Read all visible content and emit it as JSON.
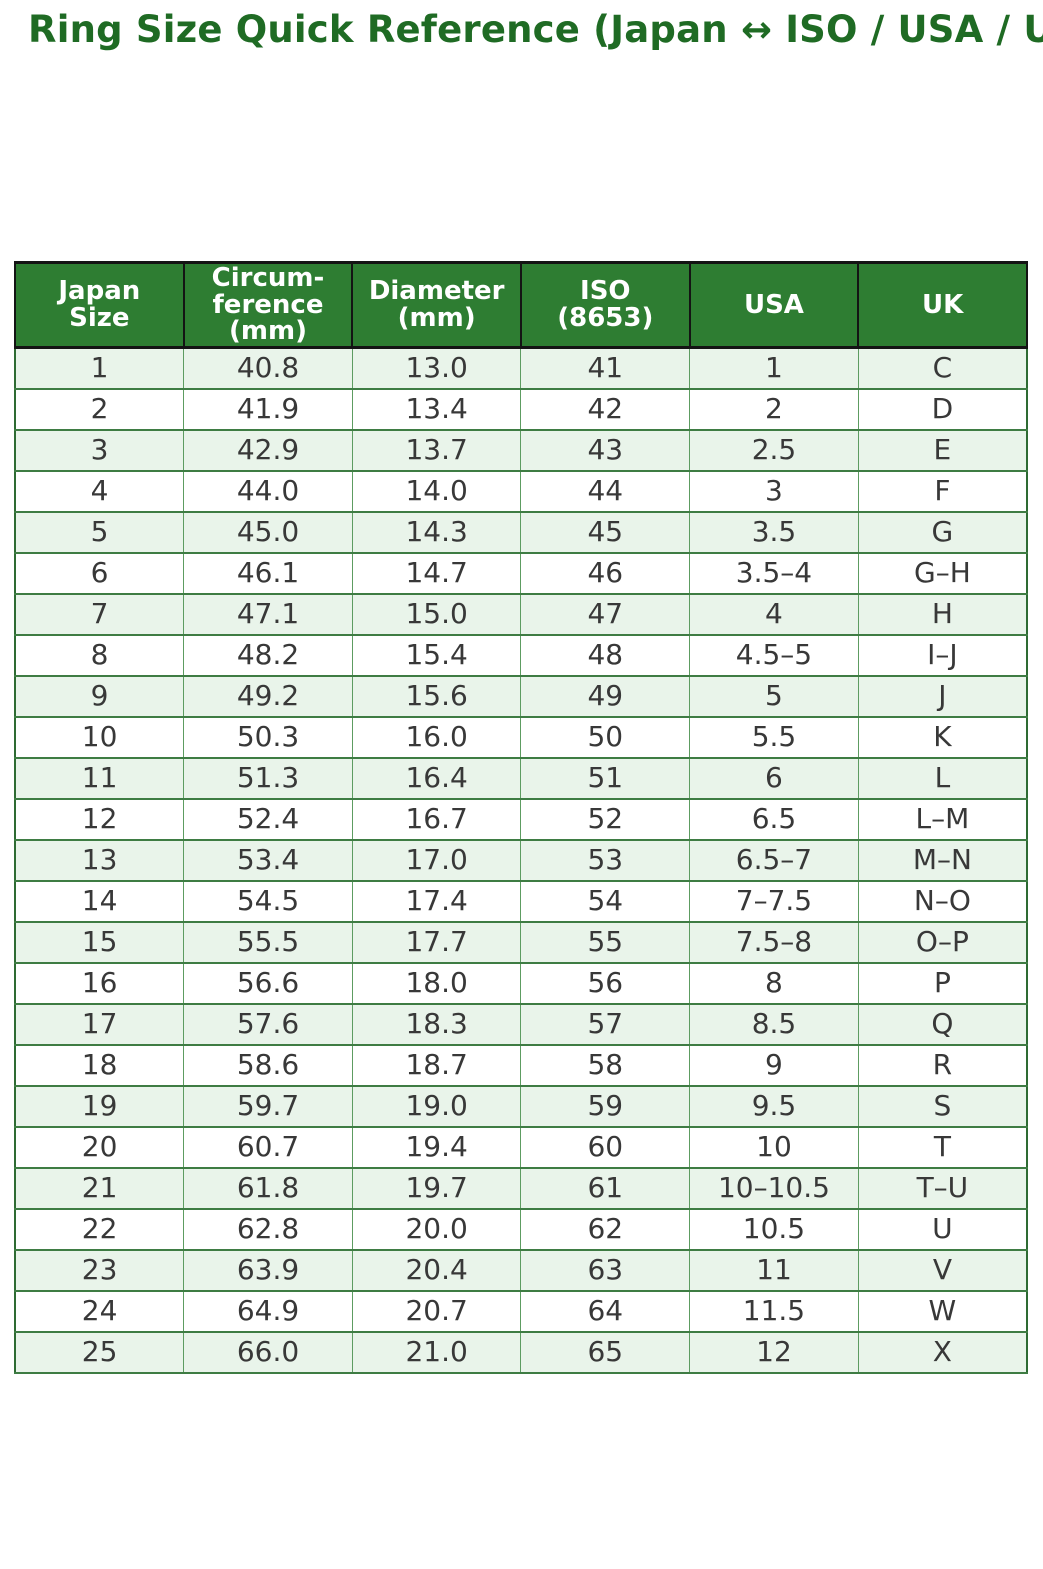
{
  "title": "Ring Size Quick Reference (Japan ↔ ISO / USA / UK)",
  "colors": {
    "title_text": "#1f6b24",
    "header_bg": "#2e7d32",
    "header_text": "#ffffff",
    "row_alt_bg": "#e9f4ea",
    "row_bg": "#ffffff",
    "row_border": "#3e7c43",
    "cell_border": "#5d9c61",
    "header_border": "#141414",
    "cell_text": "#383838"
  },
  "table": {
    "header_display": [
      "Japan\nSize",
      "Circum-\nference\n(mm)",
      "Diameter\n(mm)",
      "ISO\n(8653)",
      "USA",
      "UK"
    ]
  },
  "chart_data": {
    "type": "table",
    "title": "Ring Size Quick Reference (Japan ↔ ISO / USA / UK)",
    "columns": [
      "Japan Size",
      "Circumference (mm)",
      "Diameter (mm)",
      "ISO (8653)",
      "USA",
      "UK"
    ],
    "rows": [
      [
        "1",
        "40.8",
        "13.0",
        "41",
        "1",
        "C"
      ],
      [
        "2",
        "41.9",
        "13.4",
        "42",
        "2",
        "D"
      ],
      [
        "3",
        "42.9",
        "13.7",
        "43",
        "2.5",
        "E"
      ],
      [
        "4",
        "44.0",
        "14.0",
        "44",
        "3",
        "F"
      ],
      [
        "5",
        "45.0",
        "14.3",
        "45",
        "3.5",
        "G"
      ],
      [
        "6",
        "46.1",
        "14.7",
        "46",
        "3.5–4",
        "G–H"
      ],
      [
        "7",
        "47.1",
        "15.0",
        "47",
        "4",
        "H"
      ],
      [
        "8",
        "48.2",
        "15.4",
        "48",
        "4.5–5",
        "I–J"
      ],
      [
        "9",
        "49.2",
        "15.6",
        "49",
        "5",
        "J"
      ],
      [
        "10",
        "50.3",
        "16.0",
        "50",
        "5.5",
        "K"
      ],
      [
        "11",
        "51.3",
        "16.4",
        "51",
        "6",
        "L"
      ],
      [
        "12",
        "52.4",
        "16.7",
        "52",
        "6.5",
        "L–M"
      ],
      [
        "13",
        "53.4",
        "17.0",
        "53",
        "6.5–7",
        "M–N"
      ],
      [
        "14",
        "54.5",
        "17.4",
        "54",
        "7–7.5",
        "N–O"
      ],
      [
        "15",
        "55.5",
        "17.7",
        "55",
        "7.5–8",
        "O–P"
      ],
      [
        "16",
        "56.6",
        "18.0",
        "56",
        "8",
        "P"
      ],
      [
        "17",
        "57.6",
        "18.3",
        "57",
        "8.5",
        "Q"
      ],
      [
        "18",
        "58.6",
        "18.7",
        "58",
        "9",
        "R"
      ],
      [
        "19",
        "59.7",
        "19.0",
        "59",
        "9.5",
        "S"
      ],
      [
        "20",
        "60.7",
        "19.4",
        "60",
        "10",
        "T"
      ],
      [
        "21",
        "61.8",
        "19.7",
        "61",
        "10–10.5",
        "T–U"
      ],
      [
        "22",
        "62.8",
        "20.0",
        "62",
        "10.5",
        "U"
      ],
      [
        "23",
        "63.9",
        "20.4",
        "63",
        "11",
        "V"
      ],
      [
        "24",
        "64.9",
        "20.7",
        "64",
        "11.5",
        "W"
      ],
      [
        "25",
        "66.0",
        "21.0",
        "65",
        "12",
        "X"
      ]
    ]
  }
}
